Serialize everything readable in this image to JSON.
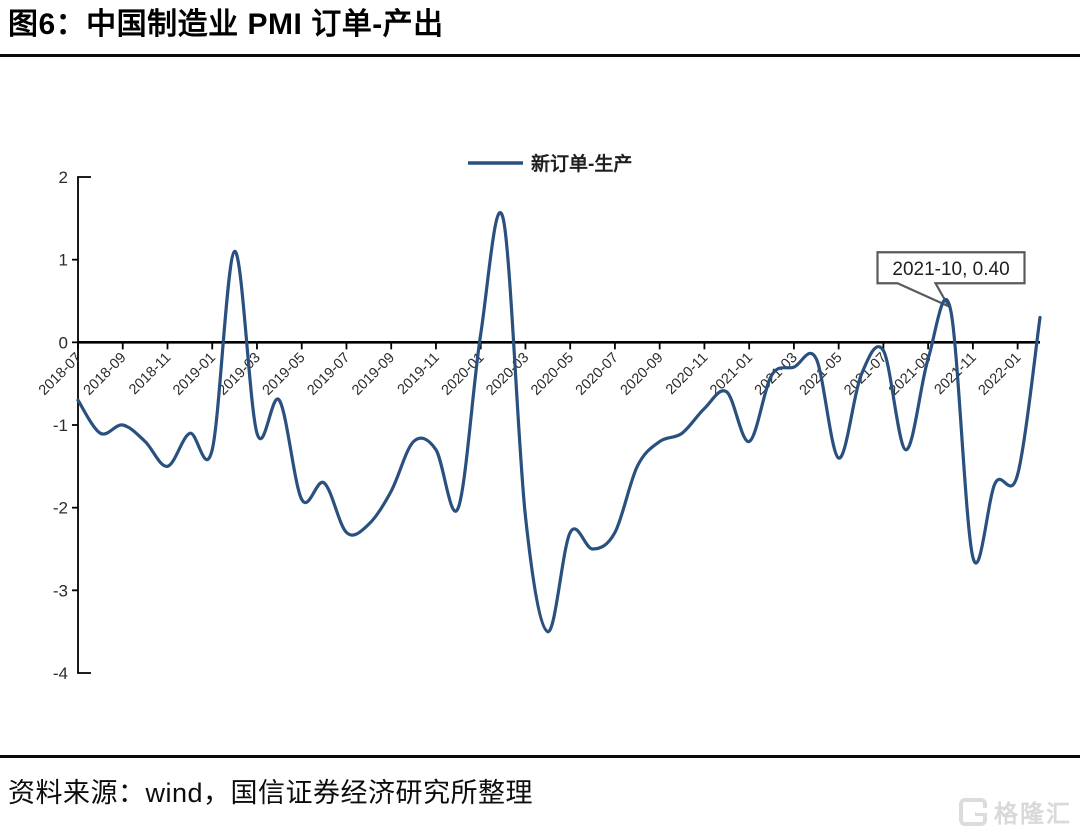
{
  "header": {
    "title": "图6：中国制造业 PMI 订单-产出"
  },
  "chart_data": {
    "type": "line",
    "title": "图6：中国制造业 PMI 订单-产出",
    "legend_entries": [
      "新订单-生产"
    ],
    "legend_position": "top-center",
    "grid": false,
    "ylim": [
      -4,
      2
    ],
    "yticks": [
      2,
      1,
      0,
      -1,
      -2,
      -3,
      -4
    ],
    "xtick_every": 2,
    "x_label_rotation": -45,
    "x": [
      "2018-07",
      "2018-08",
      "2018-09",
      "2018-10",
      "2018-11",
      "2018-12",
      "2019-01",
      "2019-02",
      "2019-03",
      "2019-04",
      "2019-05",
      "2019-06",
      "2019-07",
      "2019-08",
      "2019-09",
      "2019-10",
      "2019-11",
      "2019-12",
      "2020-01",
      "2020-02",
      "2020-03",
      "2020-04",
      "2020-05",
      "2020-06",
      "2020-07",
      "2020-08",
      "2020-09",
      "2020-10",
      "2020-11",
      "2020-12",
      "2021-01",
      "2021-02",
      "2021-03",
      "2021-04",
      "2021-05",
      "2021-06",
      "2021-07",
      "2021-08",
      "2021-09",
      "2021-10",
      "2021-11",
      "2021-12",
      "2022-01",
      "2022-02"
    ],
    "series": [
      {
        "name": "新订单-生产",
        "color": "#29507e",
        "values": [
          -0.7,
          -1.1,
          -1.0,
          -1.2,
          -1.5,
          -1.1,
          -1.3,
          1.1,
          -1.1,
          -0.7,
          -1.9,
          -1.7,
          -2.3,
          -2.2,
          -1.8,
          -1.2,
          -1.3,
          -2.0,
          0.1,
          1.5,
          -2.1,
          -3.5,
          -2.3,
          -2.5,
          -2.3,
          -1.5,
          -1.2,
          -1.1,
          -0.8,
          -0.6,
          -1.2,
          -0.4,
          -0.3,
          -0.2,
          -1.4,
          -0.4,
          -0.1,
          -1.3,
          -0.2,
          0.4,
          -2.6,
          -1.7,
          -1.6,
          0.3
        ]
      }
    ],
    "annotation": {
      "text": "2021-10, 0.40",
      "x": "2021-10",
      "y": 0.4
    },
    "axis_color": "#000000",
    "tick_label_color": "#2b2b2b",
    "annotation_border_color": "#5a5a5a"
  },
  "footer": {
    "source": "资料来源：wind，国信证券经济研究所整理",
    "watermark": "格隆汇"
  }
}
